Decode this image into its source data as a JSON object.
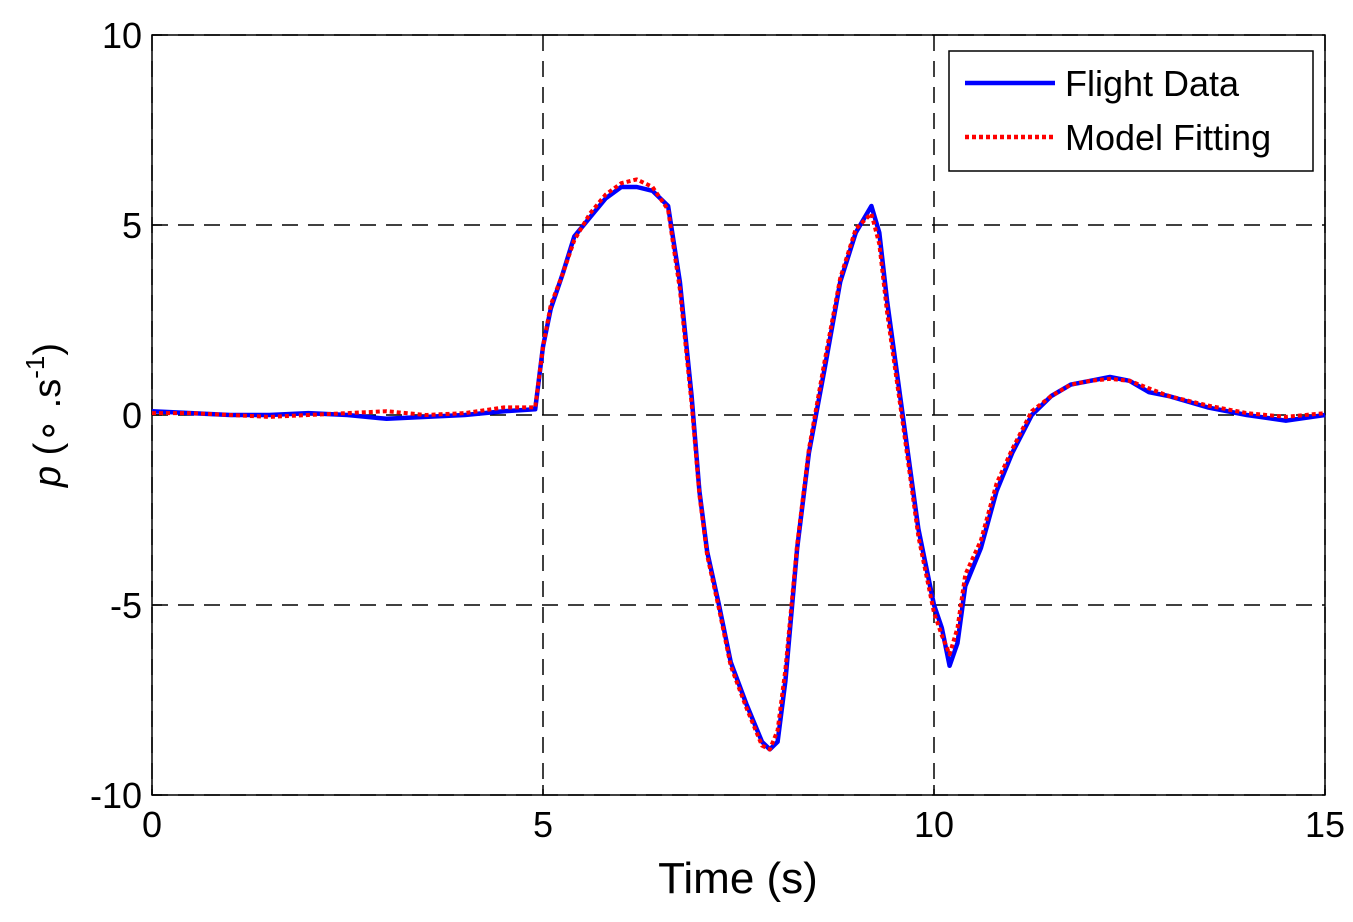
{
  "chart_data": {
    "type": "line",
    "xlabel": "Time (s)",
    "ylabel": [
      "p",
      " (∘ .s",
      "-1",
      ")"
    ],
    "x": [
      0,
      0.5,
      1,
      1.5,
      2,
      2.5,
      3,
      3.5,
      4,
      4.5,
      4.9,
      5.0,
      5.1,
      5.25,
      5.4,
      5.6,
      5.8,
      6.0,
      6.2,
      6.4,
      6.6,
      6.75,
      6.9,
      7.0,
      7.1,
      7.25,
      7.4,
      7.6,
      7.8,
      7.9,
      8.0,
      8.1,
      8.25,
      8.4,
      8.6,
      8.8,
      9.0,
      9.2,
      9.3,
      9.4,
      9.6,
      9.8,
      10.0,
      10.1,
      10.2,
      10.3,
      10.4,
      10.6,
      10.8,
      11.0,
      11.25,
      11.5,
      11.75,
      12.0,
      12.25,
      12.5,
      12.75,
      13.0,
      13.5,
      14.0,
      14.5,
      15.0
    ],
    "series": [
      {
        "name": "Flight Data",
        "color": "#0000ff",
        "style": "solid",
        "values": [
          0.1,
          0.05,
          0.0,
          0.0,
          0.05,
          0.0,
          -0.1,
          -0.05,
          0.0,
          0.1,
          0.15,
          1.8,
          2.8,
          3.7,
          4.7,
          5.2,
          5.7,
          6.0,
          6.0,
          5.9,
          5.5,
          3.5,
          0.5,
          -2,
          -3.6,
          -5.0,
          -6.5,
          -7.6,
          -8.6,
          -8.8,
          -8.6,
          -7.0,
          -3.5,
          -1.0,
          1.2,
          3.5,
          4.8,
          5.5,
          4.8,
          3.0,
          0.0,
          -3.0,
          -5.0,
          -5.6,
          -6.6,
          -6.0,
          -4.5,
          -3.5,
          -2.0,
          -1.0,
          0.0,
          0.5,
          0.8,
          0.9,
          1.0,
          0.9,
          0.6,
          0.5,
          0.2,
          0.0,
          -0.15,
          0.0
        ]
      },
      {
        "name": "Model Fitting",
        "color": "#ff0000",
        "style": "dotted",
        "values": [
          0.05,
          0.05,
          0.0,
          -0.05,
          0.0,
          0.05,
          0.1,
          0.0,
          0.05,
          0.2,
          0.2,
          1.8,
          2.9,
          3.7,
          4.6,
          5.3,
          5.8,
          6.1,
          6.2,
          6.0,
          5.4,
          3.3,
          0.3,
          -2.1,
          -3.7,
          -5.1,
          -6.6,
          -7.7,
          -8.7,
          -8.8,
          -8.3,
          -6.7,
          -3.4,
          -0.9,
          1.4,
          3.6,
          4.9,
          5.3,
          4.5,
          2.7,
          -0.2,
          -3.2,
          -5.2,
          -5.8,
          -6.3,
          -5.6,
          -4.2,
          -3.3,
          -1.8,
          -0.9,
          0.1,
          0.5,
          0.8,
          0.9,
          0.95,
          0.9,
          0.7,
          0.5,
          0.25,
          0.05,
          -0.05,
          0.05
        ]
      }
    ],
    "xlim": [
      0,
      15
    ],
    "xticks": [
      0,
      5,
      10,
      15
    ],
    "ylim": [
      -10,
      10
    ],
    "yticks": [
      -10,
      -5,
      0,
      5,
      10
    ],
    "grid": true,
    "legend": "upper right"
  }
}
